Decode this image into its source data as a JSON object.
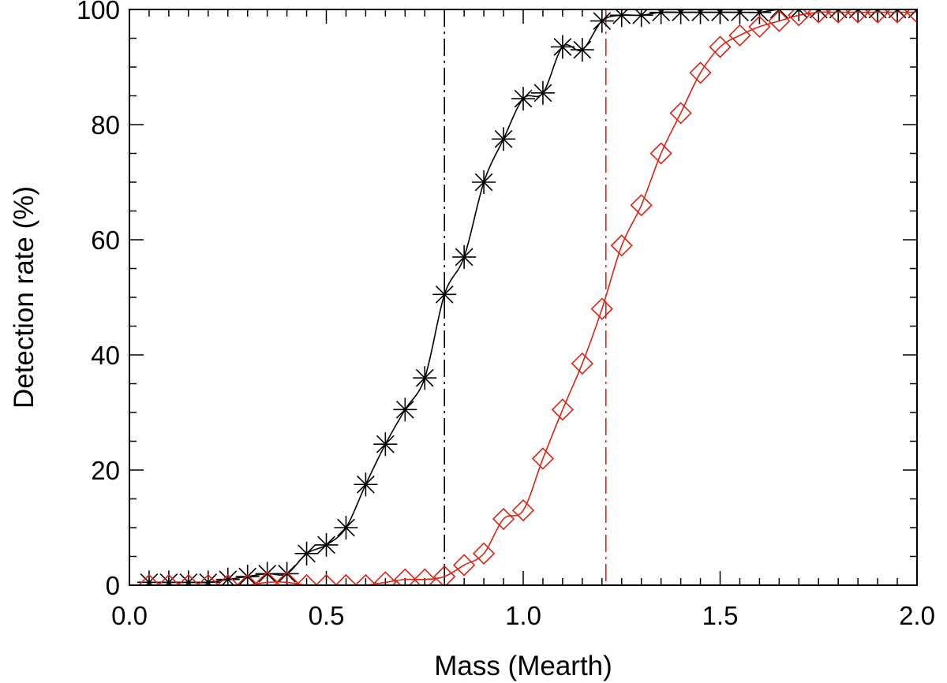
{
  "chart_data": {
    "type": "line",
    "title": "",
    "xlabel": "Mass (Mearth)",
    "ylabel": "Detection rate (%)",
    "xlim": [
      0.0,
      2.0
    ],
    "ylim": [
      0,
      100
    ],
    "xticks": [
      0.0,
      0.5,
      1.0,
      1.5,
      2.0
    ],
    "xtick_labels": [
      "0.0",
      "0.5",
      "1.0",
      "1.5",
      "2.0"
    ],
    "yticks": [
      0,
      20,
      40,
      60,
      80,
      100
    ],
    "ytick_labels": [
      "0",
      "20",
      "40",
      "60",
      "80",
      "100"
    ],
    "x_minor_step": 0.05,
    "y_minor_step": 5,
    "grid": false,
    "series": [
      {
        "name": "black asterisks",
        "color": "#000000",
        "marker": "asterisk",
        "x": [
          0.05,
          0.1,
          0.15,
          0.2,
          0.25,
          0.3,
          0.35,
          0.4,
          0.45,
          0.5,
          0.55,
          0.6,
          0.65,
          0.7,
          0.75,
          0.8,
          0.85,
          0.9,
          0.95,
          1.0,
          1.05,
          1.1,
          1.15,
          1.2,
          1.25,
          1.3,
          1.35,
          1.4,
          1.45,
          1.5,
          1.55,
          1.6,
          1.65,
          1.7,
          1.75,
          1.8,
          1.85,
          1.9,
          1.95,
          2.0
        ],
        "values": [
          0.5,
          0.5,
          0.5,
          0.5,
          1,
          1.5,
          2,
          2,
          5.5,
          7,
          10,
          17.5,
          24.5,
          30.5,
          36,
          50.5,
          57,
          70,
          77.5,
          84.5,
          85.5,
          93.5,
          93,
          98,
          99,
          99,
          99.5,
          99.5,
          99.5,
          99.5,
          99.5,
          99.5,
          100,
          100,
          100,
          100,
          100,
          100,
          100,
          100
        ]
      },
      {
        "name": "red diamonds",
        "color": "#dd2211",
        "marker": "diamond",
        "x": [
          0.05,
          0.1,
          0.15,
          0.2,
          0.25,
          0.3,
          0.35,
          0.4,
          0.45,
          0.5,
          0.55,
          0.6,
          0.65,
          0.7,
          0.75,
          0.8,
          0.85,
          0.9,
          0.95,
          1.0,
          1.05,
          1.1,
          1.15,
          1.2,
          1.25,
          1.3,
          1.35,
          1.4,
          1.45,
          1.5,
          1.55,
          1.6,
          1.65,
          1.7,
          1.75,
          1.8,
          1.85,
          1.9,
          1.95,
          2.0
        ],
        "values": [
          0,
          0,
          0,
          0,
          0,
          0,
          0.5,
          0.5,
          0,
          0,
          0,
          0,
          0.5,
          1,
          1,
          1.5,
          3.5,
          5.5,
          11.5,
          13,
          22,
          30.5,
          38.5,
          48,
          59,
          66,
          75,
          82,
          89,
          93.5,
          95.5,
          97,
          98,
          99,
          99.5,
          99.5,
          99.5,
          99.5,
          99.5,
          99.5
        ]
      }
    ],
    "vertical_lines": [
      {
        "x": 0.8,
        "color": "#000000",
        "style": "dash-dot"
      },
      {
        "x": 1.21,
        "color": "#dd2211",
        "style": "dash-dot"
      }
    ]
  }
}
